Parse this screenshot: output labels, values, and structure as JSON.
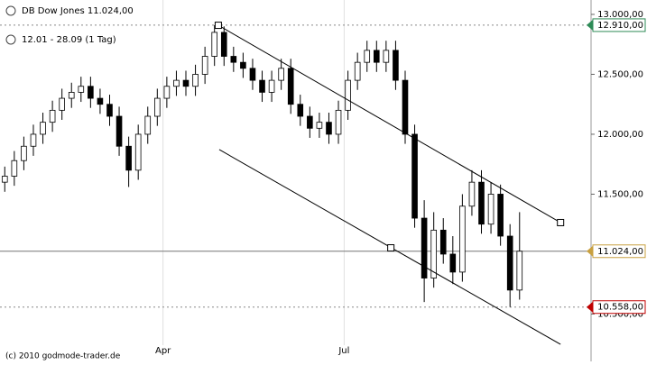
{
  "chart_data": {
    "type": "candlestick",
    "title": "DB Dow Jones 11.024,00",
    "subtitle": "12.01 - 28.09 (1 Tag)",
    "footer": "(c) 2010 godmode-trader.de",
    "xlim": [
      -0.5,
      61.5
    ],
    "xticks": [
      {
        "value": 16.6,
        "label": "Apr"
      },
      {
        "value": 35.6,
        "label": "Jul"
      }
    ],
    "ylim": [
      10150,
      13120
    ],
    "yticks": [
      {
        "value": 13000,
        "label": "13.000,00"
      },
      {
        "value": 12500,
        "label": "12.500,00"
      },
      {
        "value": 12000,
        "label": "12.000,00"
      },
      {
        "value": 11500,
        "label": "11.500,00"
      },
      {
        "value": 10500,
        "label": "10.500,00"
      }
    ],
    "series": {
      "up_color": "#ffffff",
      "down_color": "#000000",
      "open": [
        11600,
        11650,
        11780,
        11900,
        12000,
        12100,
        12200,
        12300,
        12350,
        12400,
        12300,
        12250,
        12150,
        11900,
        11700,
        12000,
        12150,
        12300,
        12400,
        12450,
        12400,
        12500,
        12650,
        12850,
        12650,
        12600,
        12550,
        12450,
        12350,
        12450,
        12550,
        12250,
        12150,
        12050,
        12100,
        12000,
        12200,
        12450,
        12600,
        12700,
        12600,
        12700,
        12450,
        12000,
        11300,
        10800,
        11200,
        11000,
        10850,
        11400,
        11600,
        11250,
        11500,
        11150,
        10700
      ],
      "high": [
        11730,
        11860,
        11980,
        12080,
        12180,
        12280,
        12380,
        12430,
        12480,
        12480,
        12380,
        12330,
        12230,
        11980,
        12080,
        12230,
        12380,
        12480,
        12530,
        12530,
        12580,
        12730,
        12910,
        12900,
        12730,
        12680,
        12630,
        12530,
        12530,
        12630,
        12630,
        12330,
        12230,
        12180,
        12180,
        12280,
        12530,
        12680,
        12780,
        12780,
        12780,
        12780,
        12530,
        12080,
        11450,
        11350,
        11300,
        11150,
        11500,
        11700,
        11700,
        11600,
        11580,
        11250,
        11350
      ],
      "low": [
        11520,
        11570,
        11700,
        11820,
        11920,
        12020,
        12120,
        12220,
        12270,
        12220,
        12170,
        12070,
        11820,
        11560,
        11620,
        11920,
        12070,
        12220,
        12320,
        12320,
        12320,
        12420,
        12570,
        12570,
        12520,
        12470,
        12370,
        12270,
        12270,
        12370,
        12170,
        12070,
        11970,
        11970,
        11920,
        11920,
        12120,
        12370,
        12520,
        12520,
        12520,
        12370,
        11920,
        11220,
        10600,
        10720,
        10920,
        10750,
        10770,
        11320,
        11170,
        11170,
        11070,
        10558,
        10620
      ],
      "close": [
        11650,
        11780,
        11900,
        12000,
        12100,
        12200,
        12300,
        12350,
        12400,
        12300,
        12250,
        12150,
        11900,
        11700,
        12000,
        12150,
        12300,
        12400,
        12450,
        12400,
        12500,
        12650,
        12850,
        12650,
        12600,
        12550,
        12450,
        12350,
        12450,
        12550,
        12250,
        12150,
        12050,
        12100,
        12000,
        12200,
        12450,
        12600,
        12700,
        12600,
        12700,
        12450,
        12000,
        11300,
        10800,
        11200,
        11000,
        10850,
        11400,
        11600,
        11250,
        11500,
        11150,
        10700,
        11024
      ]
    },
    "trend_lines": [
      {
        "x": [
          22.4,
          58.3
        ],
        "y": [
          12909,
          11263
        ],
        "handles": true
      },
      {
        "x": [
          22.5,
          58.3
        ],
        "y": [
          11872,
          10247
        ],
        "handles": false
      }
    ],
    "handle_points": [
      {
        "x": 40.5,
        "y": 11052
      }
    ],
    "price_lines": [
      {
        "value": 12910,
        "label": "12.910,00",
        "color": "#2e8b57",
        "style": "dotted"
      },
      {
        "value": 11024,
        "label": "11.024,00",
        "color": "#c8a040",
        "style": "solid"
      },
      {
        "value": 10558,
        "label": "10.558,00",
        "color": "#c00000",
        "style": "dotted"
      }
    ]
  }
}
